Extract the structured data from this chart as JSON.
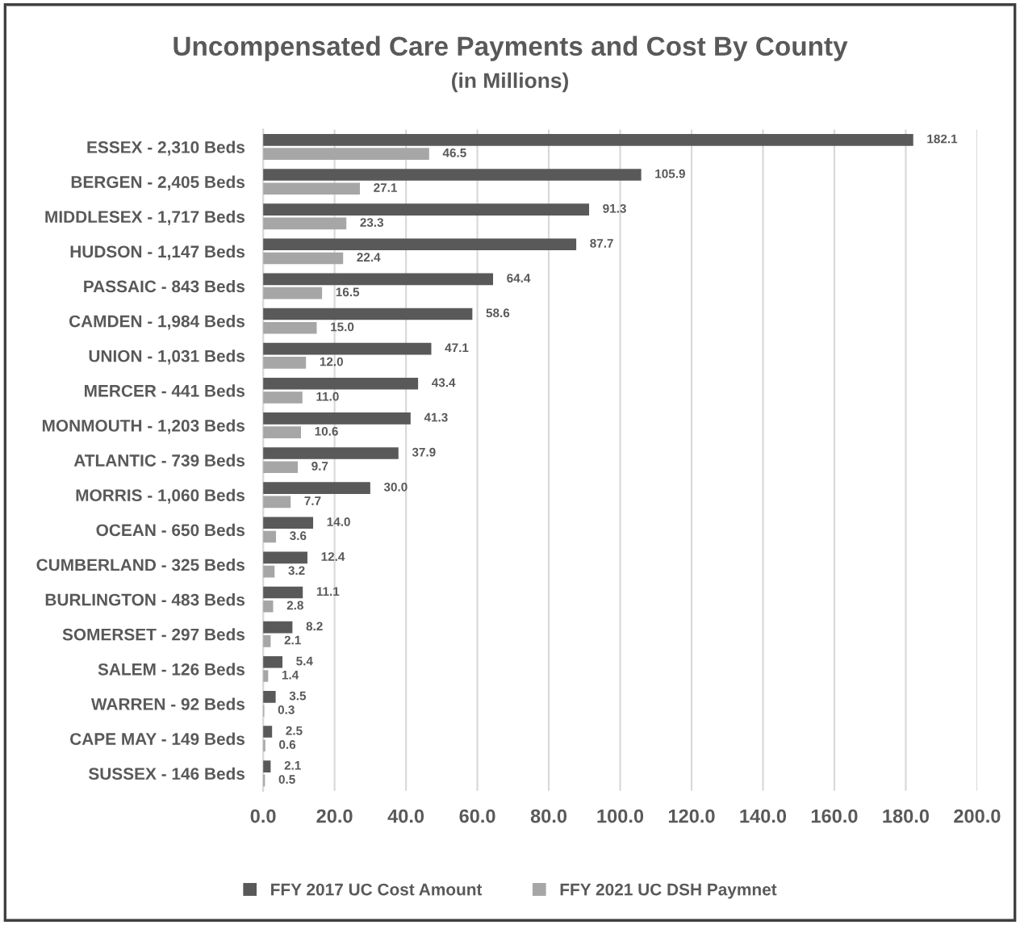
{
  "chart_data": {
    "type": "bar",
    "orientation": "horizontal",
    "title": "Uncompensated Care Payments and Cost By County",
    "subtitle": "(in Millions)",
    "categories": [
      "ESSEX - 2,310 Beds",
      "BERGEN - 2,405 Beds",
      "MIDDLESEX - 1,717 Beds",
      "HUDSON - 1,147 Beds",
      "PASSAIC - 843 Beds",
      "CAMDEN - 1,984 Beds",
      "UNION - 1,031 Beds",
      "MERCER - 441 Beds",
      "MONMOUTH - 1,203 Beds",
      "ATLANTIC - 739 Beds",
      "MORRIS - 1,060 Beds",
      "OCEAN - 650 Beds",
      "CUMBERLAND - 325 Beds",
      "BURLINGTON - 483 Beds",
      "SOMERSET - 297 Beds",
      "SALEM - 126 Beds",
      "WARREN - 92 Beds",
      "CAPE MAY - 149 Beds",
      "SUSSEX - 146 Beds"
    ],
    "series": [
      {
        "name": "FFY 2017 UC Cost Amount",
        "color": "#595959",
        "values": [
          182.1,
          105.9,
          91.3,
          87.7,
          64.4,
          58.6,
          47.1,
          43.4,
          41.3,
          37.9,
          30.0,
          14.0,
          12.4,
          11.1,
          8.2,
          5.4,
          3.5,
          2.5,
          2.1
        ],
        "value_labels": [
          "182.1",
          "105.9",
          "91.3",
          "87.7",
          "64.4",
          "58.6",
          "47.1",
          "43.4",
          "41.3",
          "37.9",
          "30.0",
          "14.0",
          "12.4",
          "11.1",
          "8.2",
          "5.4",
          "3.5",
          "2.5",
          "2.1"
        ]
      },
      {
        "name": "FFY 2021 UC DSH Paymnet",
        "color": "#a6a6a6",
        "values": [
          46.5,
          27.1,
          23.3,
          22.4,
          16.5,
          15.0,
          12.0,
          11.0,
          10.6,
          9.7,
          7.7,
          3.6,
          3.2,
          2.8,
          2.1,
          1.4,
          0.3,
          0.6,
          0.5
        ],
        "value_labels": [
          "46.5",
          "27.1",
          "23.3",
          "22.4",
          "16.5",
          "15.0",
          "12.0",
          "11.0",
          "10.6",
          "9.7",
          "7.7",
          "3.6",
          "3.2",
          "2.8",
          "2.1",
          "1.4",
          "0.3",
          "0.6",
          "0.5"
        ]
      }
    ],
    "xlim": [
      0,
      200
    ],
    "xticks": [
      {
        "value": 0,
        "label": "0.0"
      },
      {
        "value": 20,
        "label": "20.0"
      },
      {
        "value": 40,
        "label": "40.0"
      },
      {
        "value": 60,
        "label": "60.0"
      },
      {
        "value": 80,
        "label": "80.0"
      },
      {
        "value": 100,
        "label": "100.0"
      },
      {
        "value": 120,
        "label": "120.0"
      },
      {
        "value": 140,
        "label": "140.0"
      },
      {
        "value": 160,
        "label": "160.0"
      },
      {
        "value": 180,
        "label": "180.0"
      },
      {
        "value": 200,
        "label": "200.0"
      }
    ],
    "grid": "x",
    "legend": "bottom"
  }
}
